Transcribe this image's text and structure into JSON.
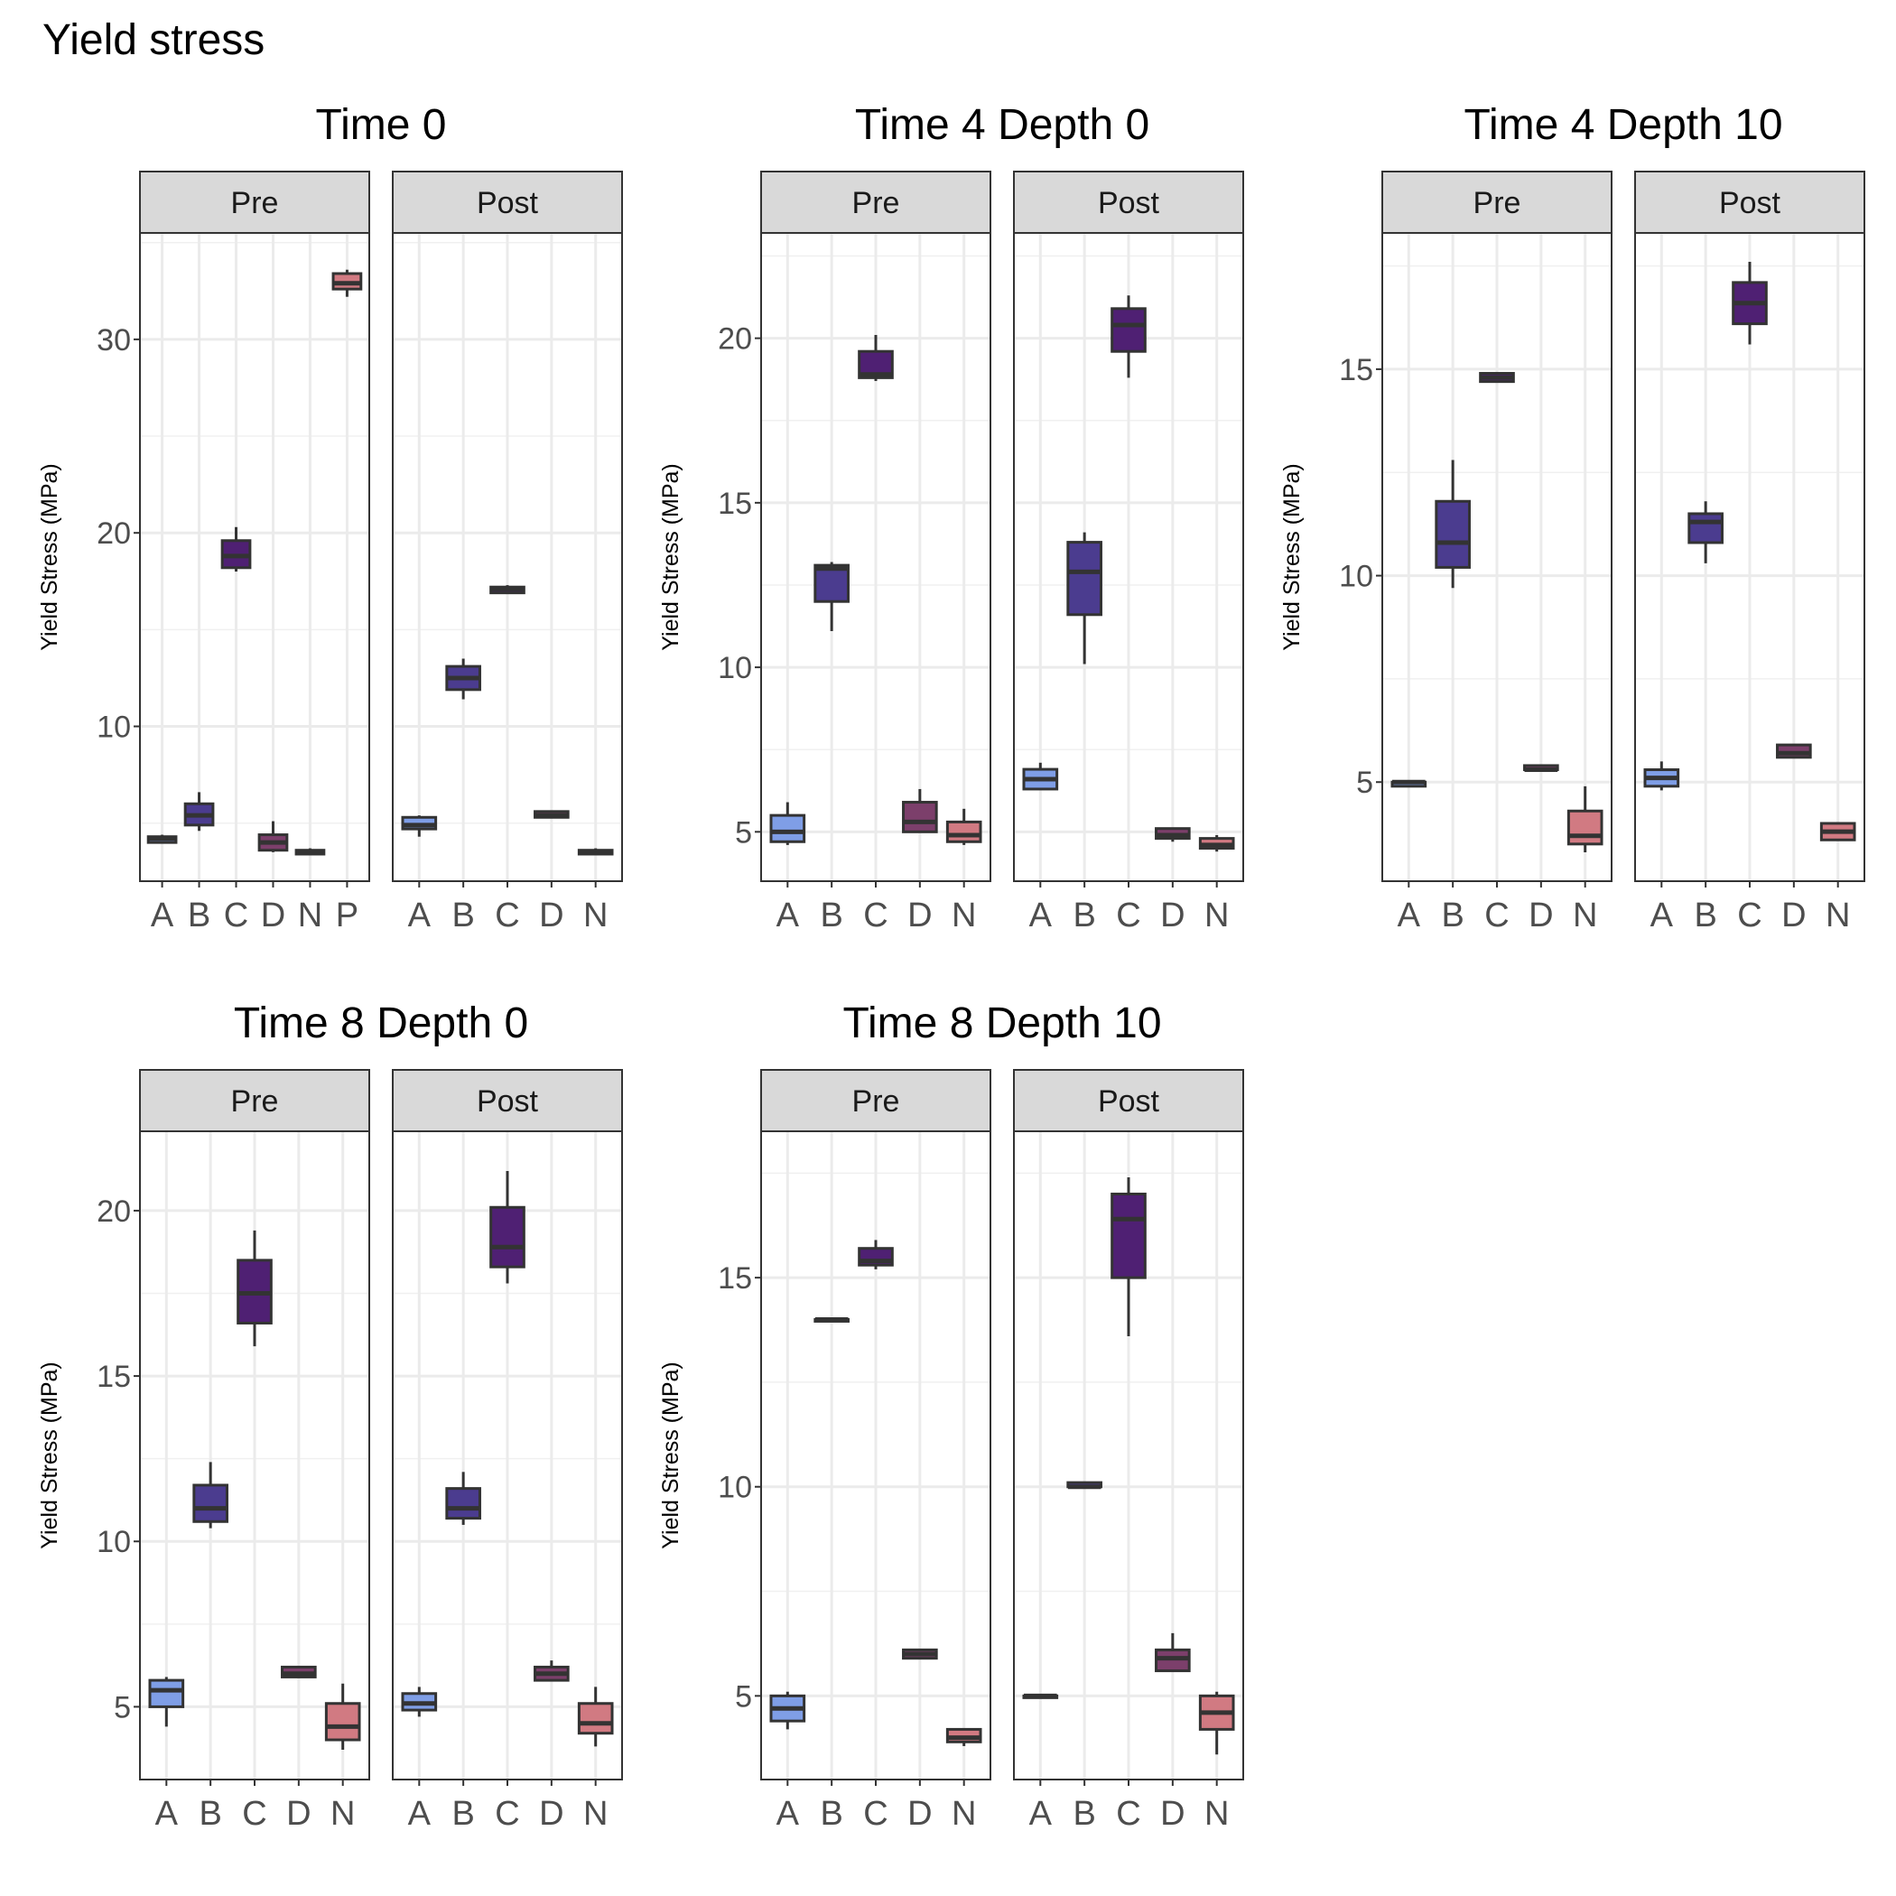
{
  "title": "Yield stress",
  "colors": {
    "A": "#7f9ee6",
    "B": "#4b3c8f",
    "C": "#4f2073",
    "D": "#7c3f6b",
    "N": "#d17a82",
    "P": "#d17a82",
    "strip_fill": "#d9d9d9",
    "box_line": "#333333"
  },
  "chart_data": [
    {
      "type": "box",
      "title": "Time 0",
      "ylabel": "Yield Stress (MPa)",
      "ylim": [
        2,
        35.5
      ],
      "yticks": [
        10,
        20,
        30
      ],
      "facets": [
        {
          "label": "Pre",
          "categories": [
            "A",
            "B",
            "C",
            "D",
            "N",
            "P"
          ],
          "boxes": [
            {
              "cat": "A",
              "min": 4.0,
              "q1": 4.0,
              "median": 4.2,
              "q3": 4.3,
              "max": 4.4
            },
            {
              "cat": "B",
              "min": 4.6,
              "q1": 4.9,
              "median": 5.4,
              "q3": 6.0,
              "max": 6.6
            },
            {
              "cat": "C",
              "min": 18.0,
              "q1": 18.2,
              "median": 18.8,
              "q3": 19.6,
              "max": 20.3
            },
            {
              "cat": "D",
              "min": 3.5,
              "q1": 3.6,
              "median": 4.0,
              "q3": 4.4,
              "max": 5.1
            },
            {
              "cat": "N",
              "min": 3.4,
              "q1": 3.4,
              "median": 3.5,
              "q3": 3.6,
              "max": 3.7
            },
            {
              "cat": "P",
              "min": 32.2,
              "q1": 32.6,
              "median": 32.9,
              "q3": 33.4,
              "max": 33.6
            }
          ]
        },
        {
          "label": "Post",
          "categories": [
            "A",
            "B",
            "C",
            "D",
            "N"
          ],
          "boxes": [
            {
              "cat": "A",
              "min": 4.3,
              "q1": 4.7,
              "median": 4.9,
              "q3": 5.3,
              "max": 5.4
            },
            {
              "cat": "B",
              "min": 11.4,
              "q1": 11.9,
              "median": 12.5,
              "q3": 13.1,
              "max": 13.5
            },
            {
              "cat": "C",
              "min": 16.9,
              "q1": 16.9,
              "median": 17.1,
              "q3": 17.2,
              "max": 17.3
            },
            {
              "cat": "D",
              "min": 5.3,
              "q1": 5.3,
              "median": 5.4,
              "q3": 5.6,
              "max": 5.6
            },
            {
              "cat": "N",
              "min": 3.4,
              "q1": 3.4,
              "median": 3.5,
              "q3": 3.6,
              "max": 3.7
            }
          ]
        }
      ]
    },
    {
      "type": "box",
      "title": "Time 4 Depth 0",
      "ylabel": "Yield Stress (MPa)",
      "ylim": [
        3.5,
        23.2
      ],
      "yticks": [
        5,
        10,
        15,
        20
      ],
      "facets": [
        {
          "label": "Pre",
          "categories": [
            "A",
            "B",
            "C",
            "D",
            "N"
          ],
          "boxes": [
            {
              "cat": "A",
              "min": 4.6,
              "q1": 4.7,
              "median": 5.0,
              "q3": 5.5,
              "max": 5.9
            },
            {
              "cat": "B",
              "min": 11.1,
              "q1": 12.0,
              "median": 13.0,
              "q3": 13.1,
              "max": 13.2
            },
            {
              "cat": "C",
              "min": 18.7,
              "q1": 18.8,
              "median": 18.9,
              "q3": 19.6,
              "max": 20.1
            },
            {
              "cat": "D",
              "min": 5.0,
              "q1": 5.0,
              "median": 5.3,
              "q3": 5.9,
              "max": 6.3
            },
            {
              "cat": "N",
              "min": 4.6,
              "q1": 4.7,
              "median": 4.9,
              "q3": 5.3,
              "max": 5.7
            }
          ]
        },
        {
          "label": "Post",
          "categories": [
            "A",
            "B",
            "C",
            "D",
            "N"
          ],
          "boxes": [
            {
              "cat": "A",
              "min": 6.3,
              "q1": 6.3,
              "median": 6.6,
              "q3": 6.9,
              "max": 7.1
            },
            {
              "cat": "B",
              "min": 10.1,
              "q1": 11.6,
              "median": 12.9,
              "q3": 13.8,
              "max": 14.1
            },
            {
              "cat": "C",
              "min": 18.8,
              "q1": 19.6,
              "median": 20.4,
              "q3": 20.9,
              "max": 21.3
            },
            {
              "cat": "D",
              "min": 4.7,
              "q1": 4.8,
              "median": 4.9,
              "q3": 5.1,
              "max": 5.1
            },
            {
              "cat": "N",
              "min": 4.4,
              "q1": 4.5,
              "median": 4.6,
              "q3": 4.8,
              "max": 4.9
            }
          ]
        }
      ]
    },
    {
      "type": "box",
      "title": "Time 4 Depth 10",
      "ylabel": "Yield Stress (MPa)",
      "ylim": [
        2.6,
        18.3
      ],
      "yticks": [
        5,
        10,
        15
      ],
      "facets": [
        {
          "label": "Pre",
          "categories": [
            "A",
            "B",
            "C",
            "D",
            "N"
          ],
          "boxes": [
            {
              "cat": "A",
              "min": 4.9,
              "q1": 4.9,
              "median": 5.0,
              "q3": 5.0,
              "max": 5.0
            },
            {
              "cat": "B",
              "min": 9.7,
              "q1": 10.2,
              "median": 10.8,
              "q3": 11.8,
              "max": 12.8
            },
            {
              "cat": "C",
              "min": 14.7,
              "q1": 14.7,
              "median": 14.8,
              "q3": 14.9,
              "max": 14.9
            },
            {
              "cat": "D",
              "min": 5.3,
              "q1": 5.3,
              "median": 5.3,
              "q3": 5.4,
              "max": 5.4
            },
            {
              "cat": "N",
              "min": 3.3,
              "q1": 3.5,
              "median": 3.7,
              "q3": 4.3,
              "max": 4.9
            }
          ]
        },
        {
          "label": "Post",
          "categories": [
            "A",
            "B",
            "C",
            "D",
            "N"
          ],
          "boxes": [
            {
              "cat": "A",
              "min": 4.8,
              "q1": 4.9,
              "median": 5.1,
              "q3": 5.3,
              "max": 5.5
            },
            {
              "cat": "B",
              "min": 10.3,
              "q1": 10.8,
              "median": 11.3,
              "q3": 11.5,
              "max": 11.8
            },
            {
              "cat": "C",
              "min": 15.6,
              "q1": 16.1,
              "median": 16.6,
              "q3": 17.1,
              "max": 17.6
            },
            {
              "cat": "D",
              "min": 5.6,
              "q1": 5.6,
              "median": 5.7,
              "q3": 5.9,
              "max": 5.9
            },
            {
              "cat": "N",
              "min": 3.6,
              "q1": 3.6,
              "median": 3.8,
              "q3": 4.0,
              "max": 4.0
            }
          ]
        }
      ]
    },
    {
      "type": "box",
      "title": "Time 8 Depth 0",
      "ylabel": "Yield Stress (MPa)",
      "ylim": [
        2.8,
        22.4
      ],
      "yticks": [
        5,
        10,
        15,
        20
      ],
      "facets": [
        {
          "label": "Pre",
          "categories": [
            "A",
            "B",
            "C",
            "D",
            "N"
          ],
          "boxes": [
            {
              "cat": "A",
              "min": 4.4,
              "q1": 5.0,
              "median": 5.5,
              "q3": 5.8,
              "max": 5.9
            },
            {
              "cat": "B",
              "min": 10.4,
              "q1": 10.6,
              "median": 11.0,
              "q3": 11.7,
              "max": 12.4
            },
            {
              "cat": "C",
              "min": 15.9,
              "q1": 16.6,
              "median": 17.5,
              "q3": 18.5,
              "max": 19.4
            },
            {
              "cat": "D",
              "min": 5.9,
              "q1": 5.9,
              "median": 6.0,
              "q3": 6.2,
              "max": 6.2
            },
            {
              "cat": "N",
              "min": 3.7,
              "q1": 4.0,
              "median": 4.4,
              "q3": 5.1,
              "max": 5.7
            }
          ]
        },
        {
          "label": "Post",
          "categories": [
            "A",
            "B",
            "C",
            "D",
            "N"
          ],
          "boxes": [
            {
              "cat": "A",
              "min": 4.7,
              "q1": 4.9,
              "median": 5.1,
              "q3": 5.4,
              "max": 5.6
            },
            {
              "cat": "B",
              "min": 10.5,
              "q1": 10.7,
              "median": 11.0,
              "q3": 11.6,
              "max": 12.1
            },
            {
              "cat": "C",
              "min": 17.8,
              "q1": 18.3,
              "median": 18.9,
              "q3": 20.1,
              "max": 21.2
            },
            {
              "cat": "D",
              "min": 5.8,
              "q1": 5.8,
              "median": 6.0,
              "q3": 6.2,
              "max": 6.4
            },
            {
              "cat": "N",
              "min": 3.8,
              "q1": 4.2,
              "median": 4.5,
              "q3": 5.1,
              "max": 5.6
            }
          ]
        }
      ]
    },
    {
      "type": "box",
      "title": "Time 8 Depth 10",
      "ylabel": "Yield Stress (MPa)",
      "ylim": [
        3.0,
        18.5
      ],
      "yticks": [
        5,
        10,
        15
      ],
      "facets": [
        {
          "label": "Pre",
          "categories": [
            "A",
            "B",
            "C",
            "D",
            "N"
          ],
          "boxes": [
            {
              "cat": "A",
              "min": 4.2,
              "q1": 4.4,
              "median": 4.7,
              "q3": 5.0,
              "max": 5.1
            },
            {
              "cat": "B",
              "min": 14.0,
              "q1": 14.0,
              "median": 14.0,
              "q3": 14.0,
              "max": 14.0
            },
            {
              "cat": "C",
              "min": 15.2,
              "q1": 15.3,
              "median": 15.4,
              "q3": 15.7,
              "max": 15.9
            },
            {
              "cat": "D",
              "min": 5.9,
              "q1": 5.9,
              "median": 6.0,
              "q3": 6.1,
              "max": 6.1
            },
            {
              "cat": "N",
              "min": 3.8,
              "q1": 3.9,
              "median": 4.0,
              "q3": 4.2,
              "max": 4.2
            }
          ]
        },
        {
          "label": "Post",
          "categories": [
            "A",
            "B",
            "C",
            "D",
            "N"
          ],
          "boxes": [
            {
              "cat": "A",
              "min": 5.0,
              "q1": 5.0,
              "median": 5.0,
              "q3": 5.0,
              "max": 5.0
            },
            {
              "cat": "B",
              "min": 10.0,
              "q1": 10.0,
              "median": 10.0,
              "q3": 10.1,
              "max": 10.1
            },
            {
              "cat": "C",
              "min": 13.6,
              "q1": 15.0,
              "median": 16.4,
              "q3": 17.0,
              "max": 17.4
            },
            {
              "cat": "D",
              "min": 5.6,
              "q1": 5.6,
              "median": 5.9,
              "q3": 6.1,
              "max": 6.5
            },
            {
              "cat": "N",
              "min": 3.6,
              "q1": 4.2,
              "median": 4.6,
              "q3": 5.0,
              "max": 5.1
            }
          ]
        }
      ]
    }
  ]
}
